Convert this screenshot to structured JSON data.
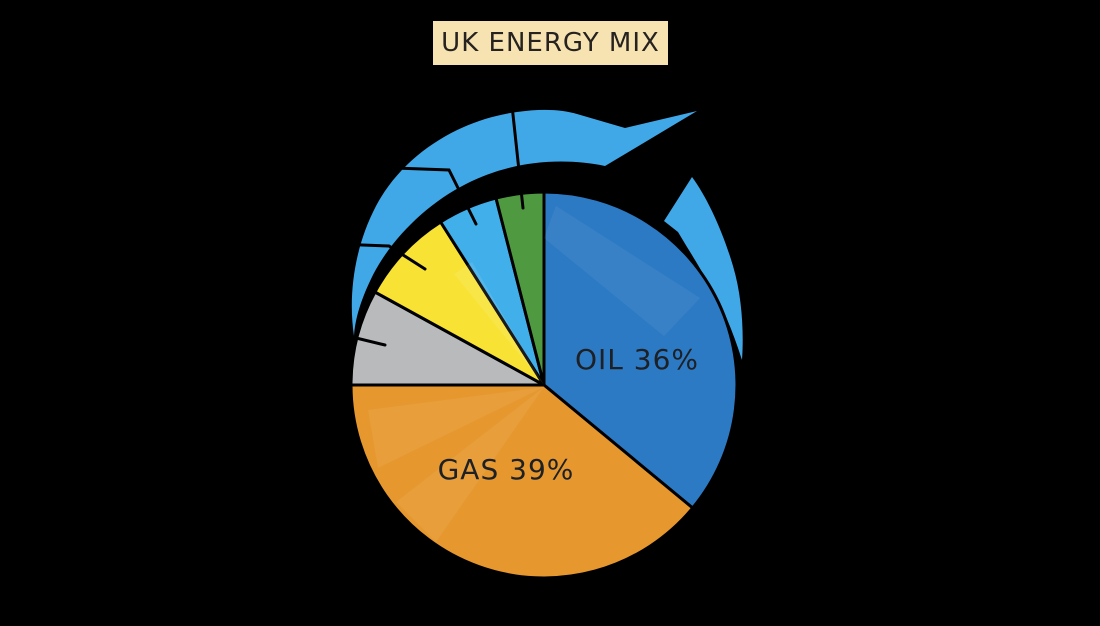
{
  "title": {
    "text": "UK ENERGY MIX"
  },
  "colors": {
    "background": "#000000",
    "arrow_blue": "#41a8e8",
    "title_box_bg": "#f7e3b2",
    "title_text": "#26221f",
    "label_text": "#1d2025",
    "outline": "#000000"
  },
  "chart_data": {
    "type": "pie",
    "title": "UK ENERGY MIX",
    "start_angle_deg": 0,
    "direction": "clockwise",
    "legend": "none",
    "slices": [
      {
        "name": "oil",
        "value": 36,
        "color": "#2d7ac4",
        "display_label": "OIL 36%"
      },
      {
        "name": "gas",
        "value": 39,
        "color": "#e6982f",
        "display_label": "GAS 39%"
      },
      {
        "name": "unlabeled-gray",
        "value": 8,
        "color": "#b8babc",
        "display_label": ""
      },
      {
        "name": "unlabeled-yellow",
        "value": 8,
        "color": "#f8e233",
        "display_label": ""
      },
      {
        "name": "unlabeled-lightblue",
        "value": 5,
        "color": "#41afe9",
        "display_label": ""
      },
      {
        "name": "unlabeled-green",
        "value": 4,
        "color": "#4f9a40",
        "display_label": ""
      }
    ]
  }
}
